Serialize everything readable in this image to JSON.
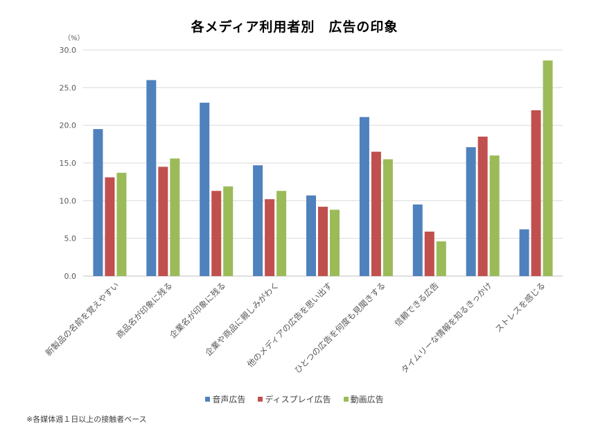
{
  "chart_data": {
    "type": "bar",
    "title": "各メディア利用者別　広告の印象",
    "ylabel": "（%）",
    "xlabel": "",
    "ylim": [
      0,
      30
    ],
    "yticks": [
      "0.0",
      "5.0",
      "10.0",
      "15.0",
      "20.0",
      "25.0",
      "30.0"
    ],
    "ytick_values": [
      0,
      5,
      10,
      15,
      20,
      25,
      30
    ],
    "grid": true,
    "legend_position": "bottom",
    "categories": [
      "新製品の名前を覚えやすい",
      "商品名が印象に残る",
      "企業名が印象に残る",
      "企業や商品に親しみがわく",
      "他のメディアの広告を思い出す",
      "ひとつの広告を何度も見聞きする",
      "信頼できる広告",
      "タイムリーな情報を知るきっかけ",
      "ストレスを感じる"
    ],
    "series": [
      {
        "name": "音声広告",
        "color": "#4F81BD",
        "values": [
          19.5,
          26.0,
          23.0,
          14.7,
          10.7,
          21.1,
          9.5,
          17.1,
          6.2
        ]
      },
      {
        "name": "ディスプレイ広告",
        "color": "#C0504D",
        "values": [
          13.1,
          14.5,
          11.3,
          10.2,
          9.2,
          16.5,
          5.9,
          18.5,
          22.0
        ]
      },
      {
        "name": "動画広告",
        "color": "#9BBB59",
        "values": [
          13.7,
          15.6,
          11.9,
          11.3,
          8.8,
          15.5,
          4.6,
          16.0,
          28.6
        ]
      }
    ],
    "footnote": "※各媒体週１日以上の接触者ベース"
  }
}
